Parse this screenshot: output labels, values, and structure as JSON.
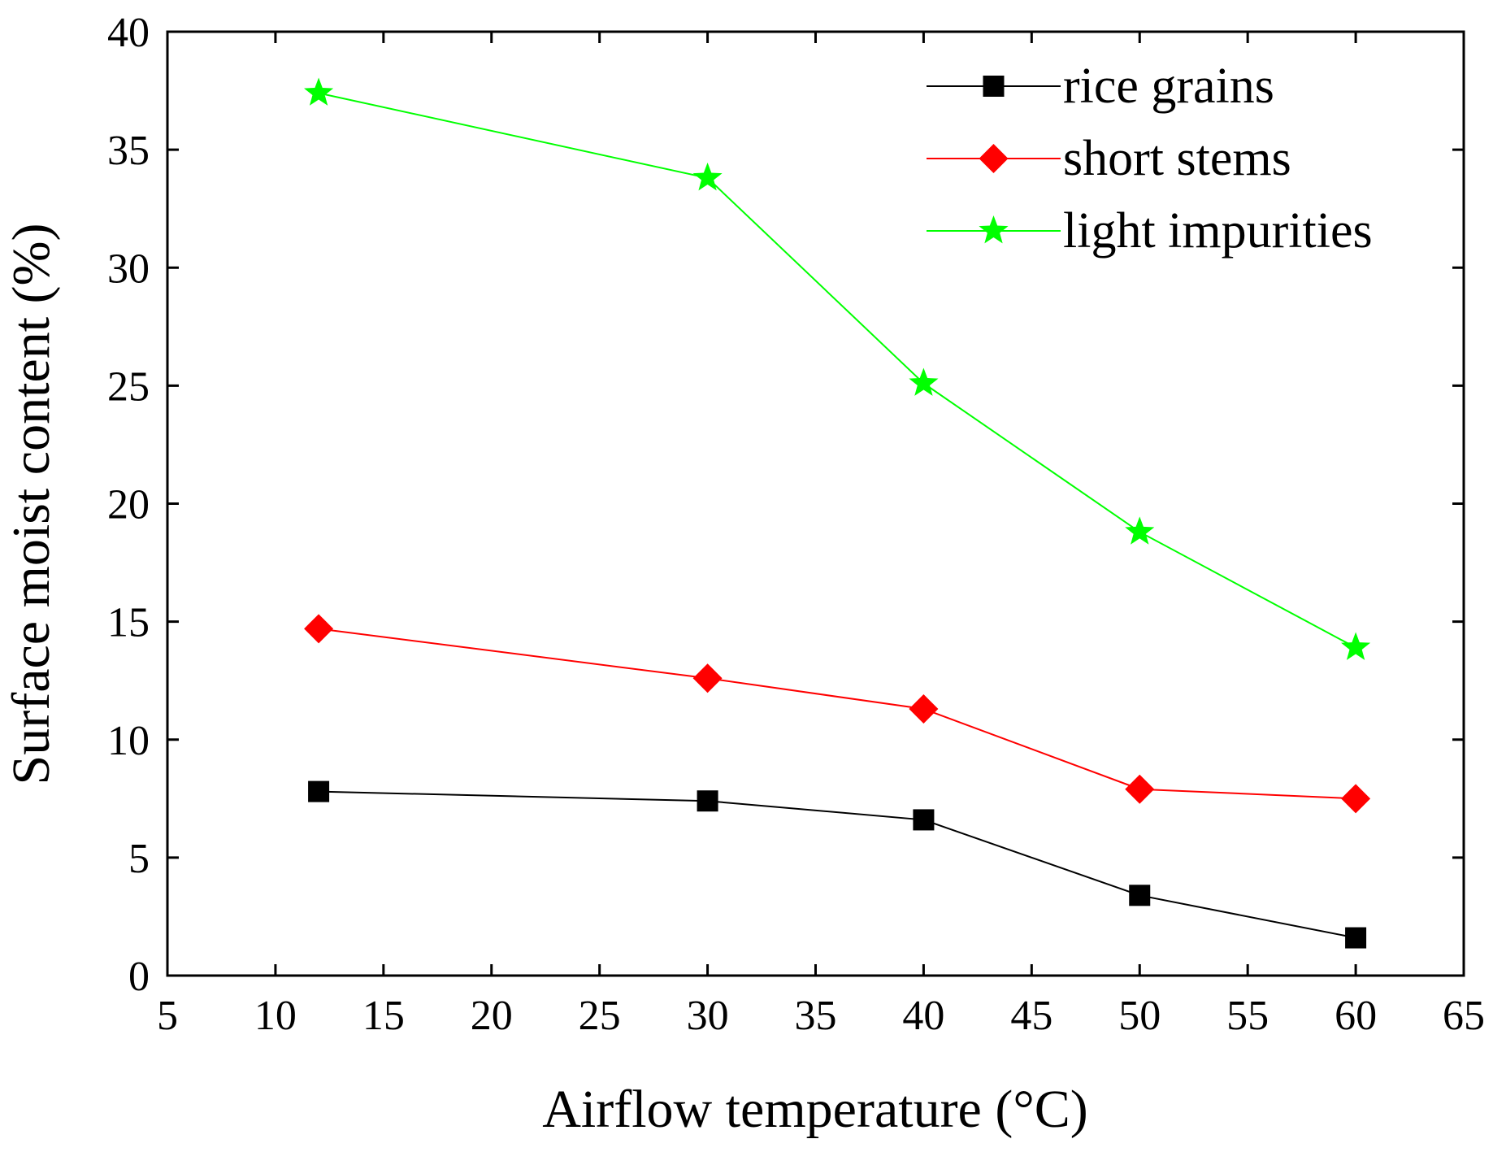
{
  "chart_data": {
    "type": "line",
    "title": "",
    "xlabel": "Airflow temperature (°C)",
    "ylabel": "Surface moist content (%)",
    "xlim": [
      5,
      65
    ],
    "ylim": [
      0,
      40
    ],
    "xticks": [
      5,
      10,
      15,
      20,
      25,
      30,
      35,
      40,
      45,
      50,
      55,
      60,
      65
    ],
    "yticks": [
      0,
      5,
      10,
      15,
      20,
      25,
      30,
      35,
      40
    ],
    "grid": false,
    "legend_position": "top-right",
    "x": [
      12,
      30,
      40,
      50,
      60
    ],
    "series": [
      {
        "name": "rice grains",
        "color": "#000000",
        "marker": "square",
        "values": [
          7.8,
          7.4,
          6.6,
          3.4,
          1.6
        ]
      },
      {
        "name": "short stems",
        "color": "#ff0000",
        "marker": "diamond",
        "values": [
          14.7,
          12.6,
          11.3,
          7.9,
          7.5
        ]
      },
      {
        "name": "light impurities",
        "color": "#00ff00",
        "marker": "star",
        "values": [
          37.4,
          33.8,
          25.1,
          18.8,
          13.9
        ]
      }
    ]
  }
}
